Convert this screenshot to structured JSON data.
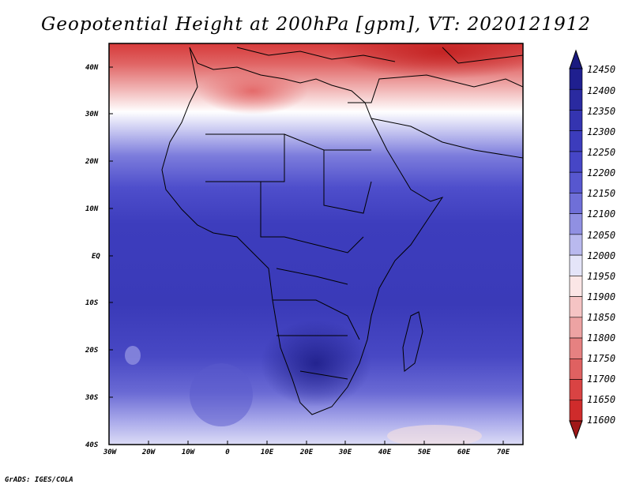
{
  "title": "Geopotential Height at 200hPa [gpm], VT: 2020121912",
  "credit": "GrADS: IGES/COLA",
  "map": {
    "lon_range": [
      -30,
      76
    ],
    "lat_range": [
      -40,
      45
    ],
    "lon_ticks": [
      "30W",
      "20W",
      "10W",
      "0",
      "10E",
      "20E",
      "30E",
      "40E",
      "50E",
      "60E",
      "70E"
    ],
    "lat_ticks": [
      "40N",
      "30N",
      "20N",
      "10N",
      "EQ",
      "10S",
      "20S",
      "30S",
      "40S"
    ]
  },
  "colorbar": {
    "levels": [
      "12450",
      "12400",
      "12350",
      "12300",
      "12250",
      "12200",
      "12150",
      "12100",
      "12050",
      "12000",
      "11950",
      "11900",
      "11850",
      "11800",
      "11750",
      "11700",
      "11650",
      "11600"
    ],
    "colors": [
      "#1f1f8f",
      "#2a2aa0",
      "#3434b0",
      "#3c3cbc",
      "#4646c6",
      "#5757cf",
      "#6f6fd8",
      "#9090e2",
      "#b9b9ee",
      "#e4e4f8",
      "#fbe6e6",
      "#f5c4c4",
      "#eda3a3",
      "#e68181",
      "#df6161",
      "#d94343",
      "#cf2b2b",
      "#b71c1c"
    ],
    "top_color": "#1a1a80",
    "bottom_color": "#a01818"
  }
}
